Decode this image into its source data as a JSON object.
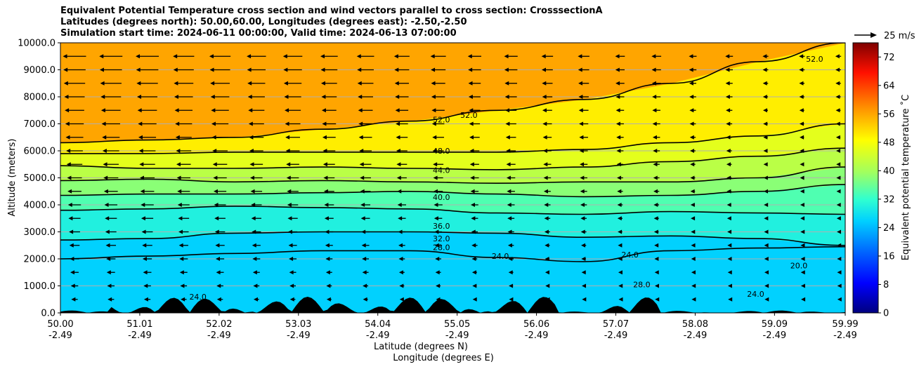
{
  "chart_data": {
    "type": "heatmap",
    "title_lines": [
      "Equivalent Potential Temperature cross section and wind vectors parallel to cross section: CrosssectionA",
      "Latitudes (degrees north): 50.00,60.00, Longitudes (degrees east): -2.50,-2.50",
      "Simulation start time: 2024-06-11 00:00:00, Valid time: 2024-06-13 07:00:00"
    ],
    "xlabel_line1": "Latitude (degrees N)",
    "xlabel_line2": "Longitude (degrees E)",
    "ylabel": "Altitude (meters)",
    "x_ticks": [
      {
        "lat": "50.00",
        "lon": "-2.49"
      },
      {
        "lat": "51.01",
        "lon": "-2.49"
      },
      {
        "lat": "52.02",
        "lon": "-2.49"
      },
      {
        "lat": "53.03",
        "lon": "-2.49"
      },
      {
        "lat": "54.04",
        "lon": "-2.49"
      },
      {
        "lat": "55.05",
        "lon": "-2.49"
      },
      {
        "lat": "56.06",
        "lon": "-2.49"
      },
      {
        "lat": "57.07",
        "lon": "-2.49"
      },
      {
        "lat": "58.08",
        "lon": "-2.49"
      },
      {
        "lat": "59.09",
        "lon": "-2.49"
      },
      {
        "lat": "59.99",
        "lon": "-2.49"
      }
    ],
    "x_range": [
      50.0,
      59.99
    ],
    "y_ticks": [
      "0.0",
      "1000.0",
      "2000.0",
      "3000.0",
      "4000.0",
      "5000.0",
      "6000.0",
      "7000.0",
      "8000.0",
      "9000.0",
      "10000.0"
    ],
    "y_range": [
      0,
      10000
    ],
    "grid": "horizontal",
    "colorbar": {
      "label": "Equivalent potential temperature ˚C",
      "range": [
        0,
        76
      ],
      "ticks": [
        "0",
        "8",
        "16",
        "24",
        "32",
        "40",
        "48",
        "56",
        "64",
        "72"
      ],
      "colormap": "jet"
    },
    "quiver_key": "25 m/s",
    "contour_labels": [
      "52.0",
      "52.0",
      "52.0",
      "48.0",
      "44.0",
      "40.0",
      "36.0",
      "32.0",
      "28.0",
      "24.0",
      "24.0",
      "24.0",
      "28.0",
      "20.0",
      "24.0"
    ],
    "contours": [
      {
        "level": 52,
        "alt": [
          6300,
          6400,
          6500,
          6800,
          7100,
          7500,
          7900,
          8500,
          9300,
          10000
        ]
      },
      {
        "level": 48,
        "alt": [
          5900,
          5900,
          5950,
          5950,
          5950,
          5950,
          6050,
          6300,
          6550,
          7000
        ]
      },
      {
        "level": 44,
        "alt": [
          5450,
          5350,
          5350,
          5400,
          5350,
          5300,
          5400,
          5600,
          5800,
          6100
        ]
      },
      {
        "level": 40,
        "alt": [
          4900,
          4950,
          4850,
          4900,
          4850,
          4800,
          4850,
          4850,
          5000,
          5400
        ]
      },
      {
        "level": 36,
        "alt": [
          4350,
          4400,
          4400,
          4450,
          4500,
          4400,
          4300,
          4350,
          4500,
          4750
        ]
      },
      {
        "level": 32,
        "alt": [
          3800,
          3850,
          3950,
          3900,
          3850,
          3700,
          3650,
          3750,
          3700,
          3650
        ]
      },
      {
        "level": 28,
        "alt": [
          2700,
          2750,
          2950,
          3000,
          3000,
          2950,
          2800,
          2850,
          2750,
          2500
        ]
      },
      {
        "level": 24,
        "alt": [
          2000,
          2100,
          2200,
          2300,
          2300,
          2050,
          1900,
          2300,
          2400,
          2450
        ]
      }
    ],
    "wind_u": [
      -12,
      -11,
      -10,
      -9,
      -8,
      -7,
      -6,
      -5,
      -4,
      -3
    ],
    "orography_max_m": 600
  }
}
